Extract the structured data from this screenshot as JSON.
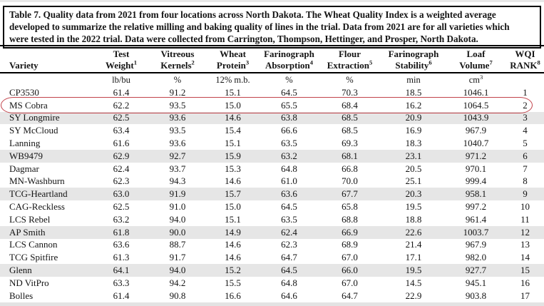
{
  "caption_lines": [
    "Table 7. Quality data from 2021 from four locations across North Dakota. The Wheat Quality Index is a weighted average",
    "developed to summarize the relative milling and baking quality of lines in the trial. Data from 2021 are for all varieties which",
    "were tested in the 2022 trial. Data were collected from Carrington, Thompson, Hettinger, and Prosper, North Dakota."
  ],
  "table": {
    "columns": [
      {
        "key": "variety",
        "line1": "",
        "line2": "Variety",
        "sup": "",
        "unit": "",
        "unit_sup": ""
      },
      {
        "key": "test-weight",
        "line1": "Test",
        "line2": "Weight",
        "sup": "1",
        "unit": "lb/bu",
        "unit_sup": ""
      },
      {
        "key": "vitreous-kernels",
        "line1": "Vitreous",
        "line2": "Kernels",
        "sup": "2",
        "unit": "%",
        "unit_sup": ""
      },
      {
        "key": "wheat-protein",
        "line1": "Wheat",
        "line2": "Protein",
        "sup": "3",
        "unit": "12% m.b.",
        "unit_sup": ""
      },
      {
        "key": "farinograph-absorption",
        "line1": "Farinograph",
        "line2": "Absorption",
        "sup": "4",
        "unit": "%",
        "unit_sup": ""
      },
      {
        "key": "flour-extraction",
        "line1": "Flour",
        "line2": "Extraction",
        "sup": "5",
        "unit": "%",
        "unit_sup": ""
      },
      {
        "key": "farinograph-stability",
        "line1": "Farinograph",
        "line2": "Stability",
        "sup": "6",
        "unit": "min",
        "unit_sup": ""
      },
      {
        "key": "loaf-volume",
        "line1": "Loaf",
        "line2": "Volume",
        "sup": "7",
        "unit": "cm",
        "unit_sup": "3"
      },
      {
        "key": "wqi-rank",
        "line1": "WQI",
        "line2": "RANK",
        "sup": "8",
        "unit": "",
        "unit_sup": ""
      }
    ],
    "rows": [
      {
        "variety": "CP3530",
        "values": [
          "61.4",
          "91.2",
          "15.1",
          "64.5",
          "70.3",
          "18.5",
          "1046.1",
          "1"
        ],
        "shaded": false,
        "highlighted": false
      },
      {
        "variety": "MS Cobra",
        "values": [
          "62.2",
          "93.5",
          "15.0",
          "65.5",
          "68.4",
          "16.2",
          "1064.5",
          "2"
        ],
        "shaded": false,
        "highlighted": true
      },
      {
        "variety": "SY Longmire",
        "values": [
          "62.5",
          "93.6",
          "14.6",
          "63.8",
          "68.5",
          "20.9",
          "1043.9",
          "3"
        ],
        "shaded": true,
        "highlighted": false
      },
      {
        "variety": "SY McCloud",
        "values": [
          "63.4",
          "93.5",
          "15.4",
          "66.6",
          "68.5",
          "16.9",
          "967.9",
          "4"
        ],
        "shaded": false,
        "highlighted": false
      },
      {
        "variety": "Lanning",
        "values": [
          "61.6",
          "93.6",
          "15.1",
          "63.5",
          "69.3",
          "18.3",
          "1040.7",
          "5"
        ],
        "shaded": false,
        "highlighted": false
      },
      {
        "variety": "WB9479",
        "values": [
          "62.9",
          "92.7",
          "15.9",
          "63.2",
          "68.1",
          "23.1",
          "971.2",
          "6"
        ],
        "shaded": true,
        "highlighted": false
      },
      {
        "variety": "Dagmar",
        "values": [
          "62.4",
          "93.7",
          "15.3",
          "64.8",
          "66.8",
          "20.5",
          "970.1",
          "7"
        ],
        "shaded": false,
        "highlighted": false
      },
      {
        "variety": "MN-Washburn",
        "values": [
          "62.3",
          "94.3",
          "14.6",
          "61.0",
          "70.0",
          "25.1",
          "999.4",
          "8"
        ],
        "shaded": false,
        "highlighted": false
      },
      {
        "variety": "TCG-Heartland",
        "values": [
          "63.0",
          "91.9",
          "15.7",
          "63.6",
          "67.7",
          "20.3",
          "958.1",
          "9"
        ],
        "shaded": true,
        "highlighted": false
      },
      {
        "variety": "CAG-Reckless",
        "values": [
          "62.5",
          "91.0",
          "15.0",
          "64.5",
          "65.8",
          "19.5",
          "997.2",
          "10"
        ],
        "shaded": false,
        "highlighted": false
      },
      {
        "variety": "LCS Rebel",
        "values": [
          "63.2",
          "94.0",
          "15.1",
          "63.5",
          "68.8",
          "18.8",
          "961.4",
          "11"
        ],
        "shaded": false,
        "highlighted": false
      },
      {
        "variety": "AP Smith",
        "values": [
          "61.8",
          "90.0",
          "14.9",
          "62.4",
          "66.9",
          "22.6",
          "1003.7",
          "12"
        ],
        "shaded": true,
        "highlighted": false
      },
      {
        "variety": "LCS Cannon",
        "values": [
          "63.6",
          "88.7",
          "14.6",
          "62.3",
          "68.9",
          "21.4",
          "967.9",
          "13"
        ],
        "shaded": false,
        "highlighted": false
      },
      {
        "variety": "TCG Spitfire",
        "values": [
          "61.3",
          "91.7",
          "14.6",
          "64.7",
          "67.0",
          "17.1",
          "982.0",
          "14"
        ],
        "shaded": false,
        "highlighted": false
      },
      {
        "variety": "Glenn",
        "values": [
          "64.1",
          "94.0",
          "15.2",
          "64.5",
          "66.0",
          "19.5",
          "927.7",
          "15"
        ],
        "shaded": true,
        "highlighted": false
      },
      {
        "variety": "ND VitPro",
        "values": [
          "63.3",
          "94.2",
          "15.5",
          "64.8",
          "67.0",
          "14.5",
          "945.1",
          "16"
        ],
        "shaded": false,
        "highlighted": false
      },
      {
        "variety": "Bolles",
        "values": [
          "61.4",
          "90.8",
          "16.6",
          "64.6",
          "64.7",
          "22.9",
          "903.8",
          "17"
        ],
        "shaded": false,
        "highlighted": false
      }
    ]
  },
  "colors": {
    "row_shade": "#e6e6e6",
    "highlight_ring": "#c2434b",
    "rule": "#000000",
    "text": "#141414"
  }
}
